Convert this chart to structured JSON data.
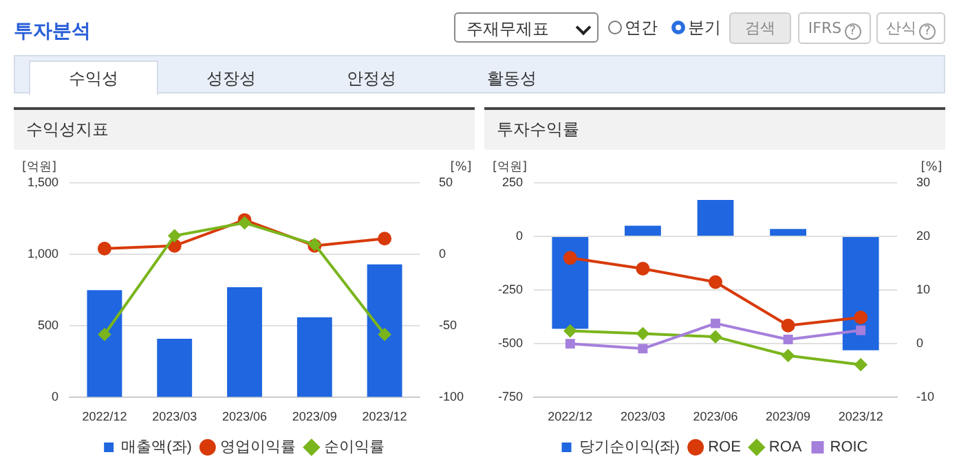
{
  "chart_data": [
    {
      "type": "bar",
      "title": "수익성지표",
      "annotations": [
        "투자분석",
        "주재무제표",
        "연간",
        "분기",
        "검색",
        "IFRS",
        "산식",
        "수익성",
        "성장성",
        "안정성",
        "활동성",
        "?",
        "?"
      ],
      "ylabel": "[억원]",
      "y2label": "[%]",
      "categories": [
        "2022/12",
        "2023/03",
        "2023/06",
        "2023/09",
        "2023/12"
      ],
      "ylim": [
        0,
        1500
      ],
      "yticks": [
        0,
        500,
        {
          "value": 1000,
          "label": "1,000"
        },
        {
          "value": 1500,
          "label": "1,500"
        }
      ],
      "y2lim": [
        -100,
        50
      ],
      "y2ticks": [
        -100,
        -50,
        0,
        50
      ],
      "grid": "y",
      "legend": "bottom",
      "series": [
        {
          "name": "매출액(좌)",
          "color": "#1f66e0",
          "values": [
            750,
            410,
            770,
            560,
            930
          ]
        },
        {
          "name": "영업이익률",
          "type": "line",
          "axis": "y2",
          "marker": "circle",
          "color": "#d83a0a",
          "values": [
            4,
            6,
            24,
            6,
            11
          ]
        },
        {
          "name": "순이익률",
          "type": "line",
          "axis": "y2",
          "marker": "diamond",
          "color": "#7ab51d",
          "values": [
            -56,
            13,
            22,
            7,
            -56
          ]
        }
      ]
    },
    {
      "type": "bar",
      "title": "투자수익률",
      "ylabel": "[억원]",
      "y2label": "[%]",
      "categories": [
        "2022/12",
        "2023/03",
        "2023/06",
        "2023/09",
        "2023/12"
      ],
      "ylim": [
        -750,
        250
      ],
      "yticks": [
        -750,
        -500,
        -250,
        0,
        250
      ],
      "y2lim": [
        -10,
        30
      ],
      "y2ticks": [
        -10,
        0,
        10,
        20,
        30
      ],
      "grid": "y",
      "legend": "bottom",
      "series": [
        {
          "name": "당기순이익(좌)",
          "color": "#1f66e0",
          "values": [
            -430,
            50,
            170,
            35,
            -530
          ]
        },
        {
          "name": "ROE",
          "type": "line",
          "axis": "y2",
          "marker": "circle",
          "color": "#d83a0a",
          "values": [
            16,
            14,
            11.5,
            3.4,
            4.9
          ]
        },
        {
          "name": "ROA",
          "type": "line",
          "axis": "y2",
          "marker": "diamond",
          "color": "#7ab51d",
          "values": [
            2.4,
            1.9,
            1.3,
            -2.2,
            -3.9
          ]
        },
        {
          "name": "ROIC",
          "type": "line",
          "axis": "y2",
          "marker": "square",
          "color": "#a57fdc",
          "values": [
            0,
            -0.9,
            3.8,
            0.8,
            2.5
          ]
        }
      ]
    }
  ]
}
